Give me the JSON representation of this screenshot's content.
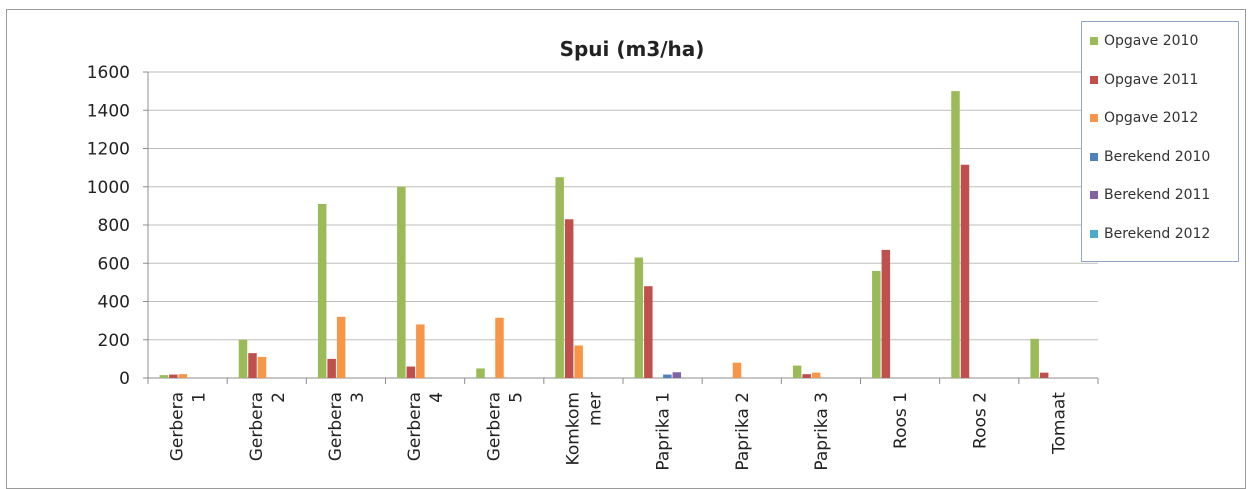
{
  "chart_data": {
    "type": "bar",
    "title": "Spui (m3/ha)",
    "xlabel": "",
    "ylabel": "",
    "ylim": [
      0,
      1600
    ],
    "yticks": [
      0,
      200,
      400,
      600,
      800,
      1000,
      1200,
      1400,
      1600
    ],
    "grid": true,
    "legend_position": "right",
    "categories": [
      [
        "Gerbera",
        "1"
      ],
      [
        "Gerbera",
        "2"
      ],
      [
        "Gerbera",
        "3"
      ],
      [
        "Gerbera",
        "4"
      ],
      [
        "Gerbera",
        "5"
      ],
      [
        "Komkom",
        "mer"
      ],
      [
        "Paprika 1"
      ],
      [
        "Paprika 2"
      ],
      [
        "Paprika 3"
      ],
      [
        "Roos 1"
      ],
      [
        "Roos 2"
      ],
      [
        "Tomaat"
      ]
    ],
    "series": [
      {
        "name": "Opgave 2010",
        "color": "#9bbb59",
        "values": [
          15,
          200,
          910,
          1000,
          50,
          1050,
          630,
          null,
          65,
          560,
          1500,
          205
        ]
      },
      {
        "name": "Opgave 2011",
        "color": "#c0504d",
        "values": [
          18,
          130,
          100,
          60,
          null,
          830,
          480,
          null,
          20,
          670,
          1115,
          28
        ]
      },
      {
        "name": "Opgave 2012",
        "color": "#f79646",
        "values": [
          20,
          110,
          320,
          280,
          315,
          170,
          null,
          80,
          28,
          null,
          null,
          null
        ]
      },
      {
        "name": "Berekend 2010",
        "color": "#4f81bd",
        "values": [
          null,
          null,
          null,
          null,
          null,
          null,
          18,
          null,
          null,
          null,
          null,
          null
        ]
      },
      {
        "name": "Berekend 2011",
        "color": "#8064a2",
        "values": [
          null,
          null,
          null,
          null,
          null,
          null,
          30,
          null,
          null,
          null,
          null,
          null
        ]
      },
      {
        "name": "Berekend 2012",
        "color": "#4bacc6",
        "values": [
          null,
          null,
          null,
          null,
          null,
          null,
          null,
          null,
          null,
          null,
          null,
          null
        ]
      }
    ]
  }
}
